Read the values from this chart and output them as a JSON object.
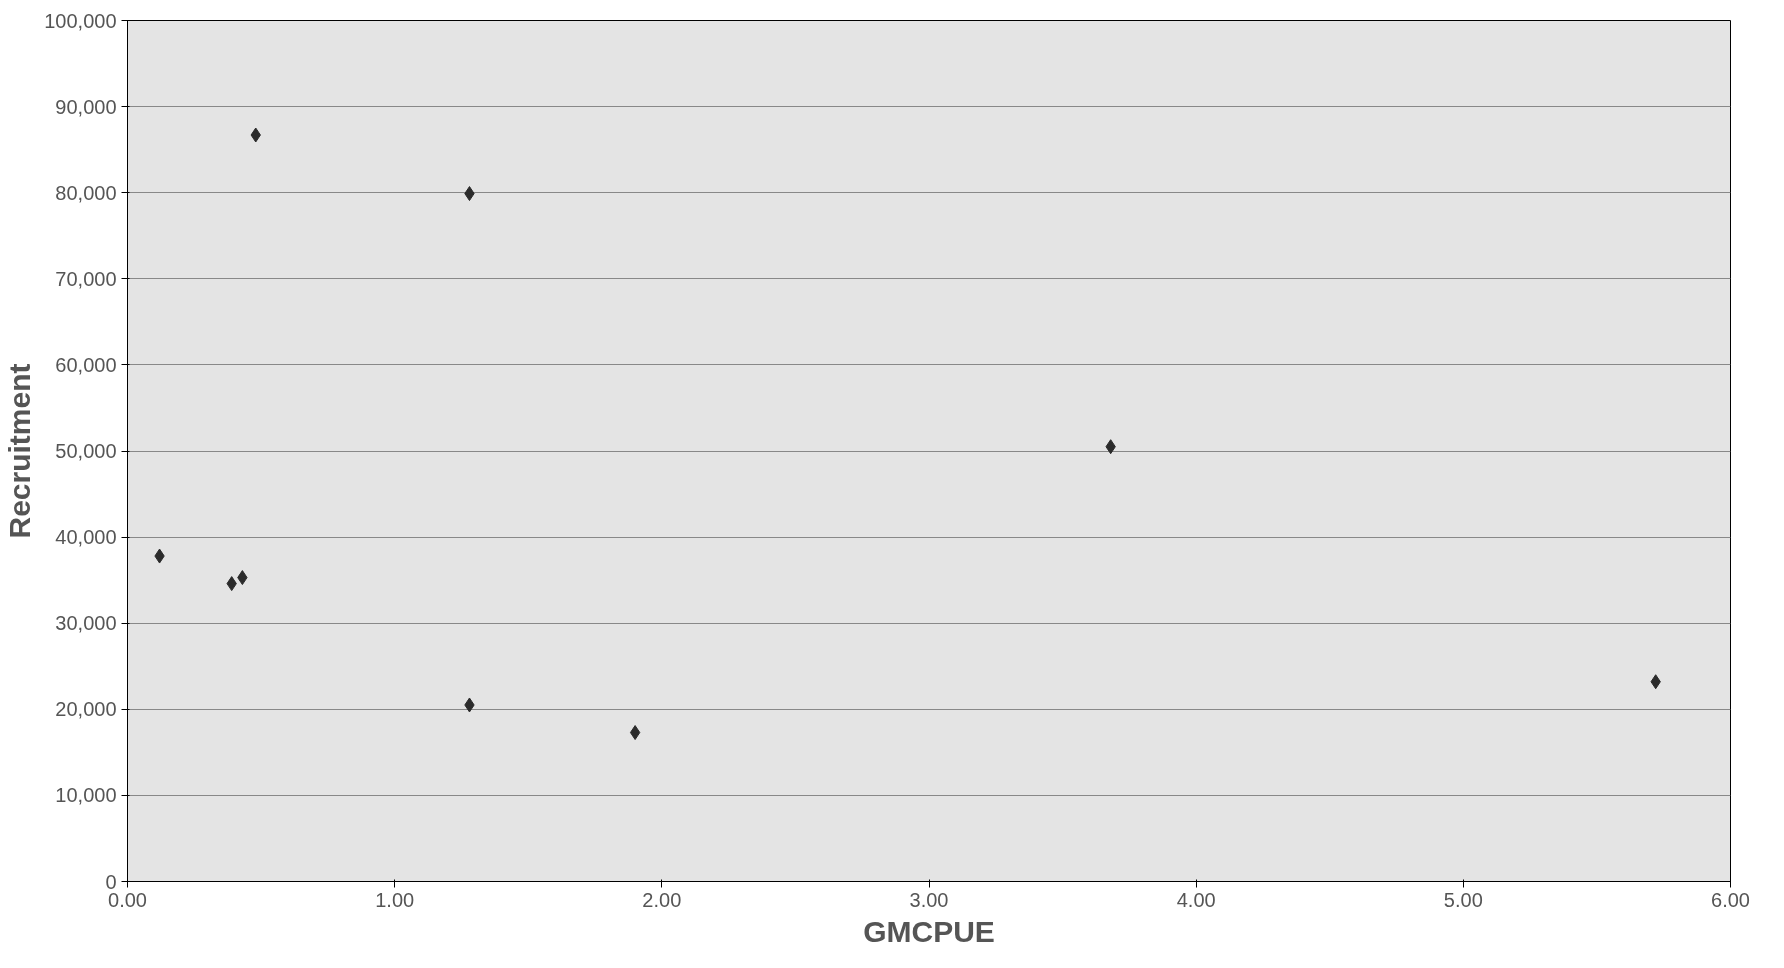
{
  "chart_data": {
    "type": "scatter",
    "xlabel": "GMCPUE",
    "ylabel": "Recruitment",
    "x": [
      0.12,
      0.39,
      0.43,
      0.48,
      1.28,
      1.28,
      1.9,
      3.68,
      5.72
    ],
    "series": [
      {
        "color": "#2b2b2b",
        "values": [
          37800,
          34600,
          35300,
          86700,
          79900,
          20500,
          17300,
          50500,
          23200
        ]
      }
    ],
    "xlim": [
      0,
      6
    ],
    "xticks": [
      {
        "value": 0,
        "label": "0.00"
      },
      {
        "value": 1,
        "label": "1.00"
      },
      {
        "value": 2,
        "label": "2.00"
      },
      {
        "value": 3,
        "label": "3.00"
      },
      {
        "value": 4,
        "label": "4.00"
      },
      {
        "value": 5,
        "label": "5.00"
      },
      {
        "value": 6,
        "label": "6.00"
      }
    ],
    "ylim": [
      0,
      100000
    ],
    "yticks": [
      0,
      {
        "value": 10000,
        "label": "10,000"
      },
      {
        "value": 20000,
        "label": "20,000"
      },
      {
        "value": 30000,
        "label": "30,000"
      },
      {
        "value": 40000,
        "label": "40,000"
      },
      {
        "value": 50000,
        "label": "50,000"
      },
      {
        "value": 60000,
        "label": "60,000"
      },
      {
        "value": 70000,
        "label": "70,000"
      },
      {
        "value": 80000,
        "label": "80,000"
      },
      {
        "value": 90000,
        "label": "90,000"
      },
      {
        "value": 100000,
        "label": "100,000"
      }
    ],
    "grid": "y",
    "marker": "diamond"
  }
}
